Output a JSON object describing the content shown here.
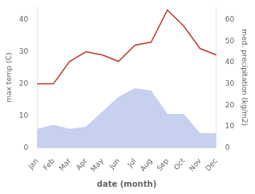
{
  "chart_data": {
    "type": "line",
    "xlabel": "date (month)",
    "ylabel": "max temp (C)",
    "y2label": "med. precipitation (kg/m2)",
    "categories": [
      "Jan",
      "Feb",
      "Mar",
      "Apr",
      "May",
      "Jun",
      "Jul",
      "Aug",
      "Sep",
      "Oct",
      "Nov",
      "Dec"
    ],
    "series": [
      {
        "type": "area",
        "axis": "y2",
        "color": "#c8d0f0",
        "values": [
          9,
          11,
          9,
          10,
          17,
          24,
          28,
          27,
          16,
          16,
          7,
          7
        ]
      },
      {
        "type": "line",
        "color": "#c0392b",
        "values": [
          20,
          20,
          27,
          30,
          29,
          27,
          32,
          33,
          43,
          38,
          31,
          29
        ]
      }
    ],
    "ylim": [
      0,
      44
    ],
    "yticks": [
      0,
      10,
      20,
      30,
      40
    ],
    "y2lim": [
      0,
      66
    ],
    "y2ticks": [
      0,
      10,
      20,
      30,
      40,
      50,
      60
    ],
    "grid": false
  }
}
